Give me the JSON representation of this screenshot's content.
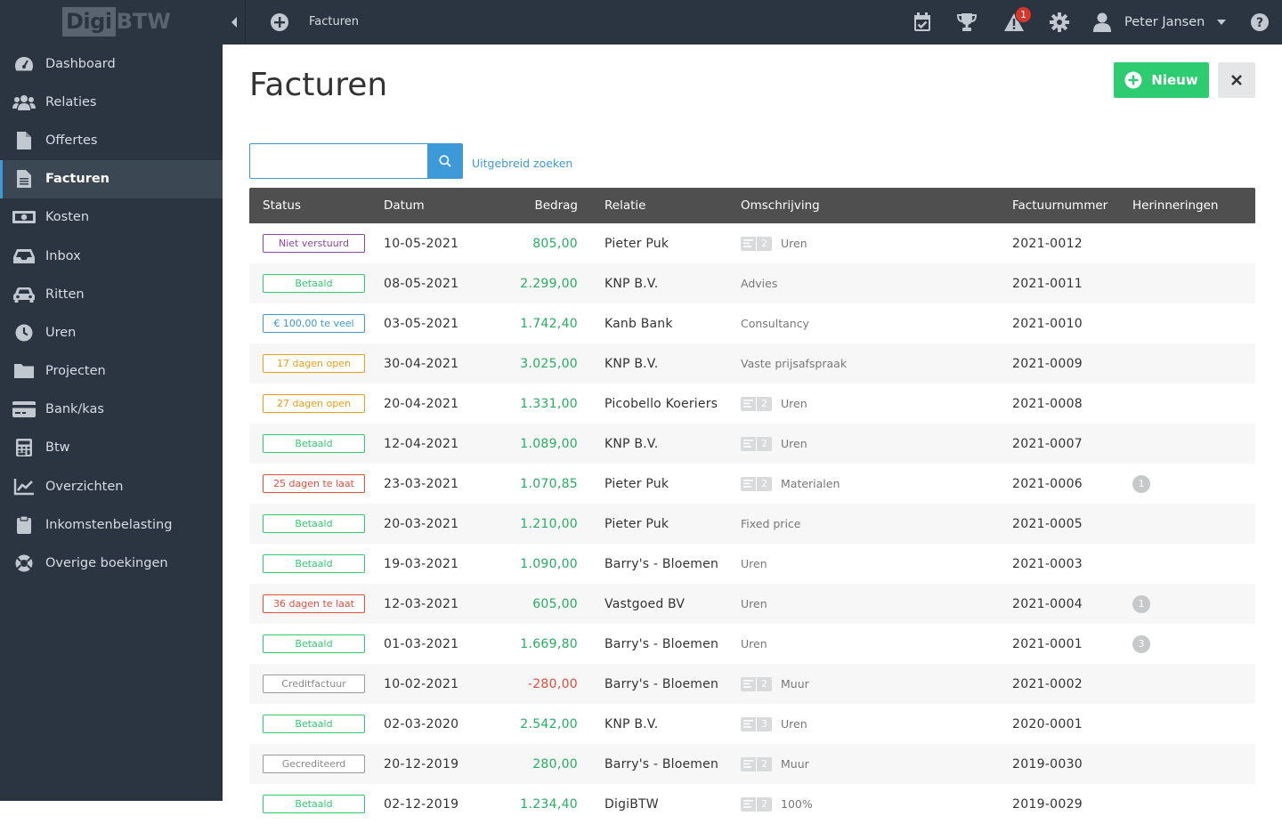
{
  "app": {
    "logo_part1": "Digi",
    "logo_part2": "BTW"
  },
  "sidebar": {
    "items": [
      {
        "label": "Dashboard",
        "icon": "dashboard-icon",
        "active": false
      },
      {
        "label": "Relaties",
        "icon": "users-icon",
        "active": false
      },
      {
        "label": "Offertes",
        "icon": "file-icon",
        "active": false
      },
      {
        "label": "Facturen",
        "icon": "file-text-icon",
        "active": true
      },
      {
        "label": "Kosten",
        "icon": "money-icon",
        "active": false
      },
      {
        "label": "Inbox",
        "icon": "inbox-icon",
        "active": false
      },
      {
        "label": "Ritten",
        "icon": "car-icon",
        "active": false
      },
      {
        "label": "Uren",
        "icon": "clock-icon",
        "active": false
      },
      {
        "label": "Projecten",
        "icon": "folder-icon",
        "active": false
      },
      {
        "label": "Bank/kas",
        "icon": "credit-card-icon",
        "active": false
      },
      {
        "label": "Btw",
        "icon": "calculator-icon",
        "active": false
      },
      {
        "label": "Overzichten",
        "icon": "chart-icon",
        "active": false
      },
      {
        "label": "Inkomstenbelasting",
        "icon": "clipboard-icon",
        "active": false
      },
      {
        "label": "Overige boekingen",
        "icon": "lifebuoy-icon",
        "active": false
      }
    ]
  },
  "topbar": {
    "title": "Facturen",
    "notification_count": "1",
    "user_name": "Peter Jansen"
  },
  "page": {
    "title": "Facturen",
    "new_button": "Nieuw",
    "search_placeholder": "",
    "search_value": "",
    "advanced_search": "Uitgebreid zoeken"
  },
  "table": {
    "headers": {
      "status": "Status",
      "datum": "Datum",
      "bedrag": "Bedrag",
      "relatie": "Relatie",
      "omschrijving": "Omschrijving",
      "factuurnummer": "Factuurnummer",
      "herinneringen": "Herinneringen"
    },
    "rows": [
      {
        "status": "Niet verstuurd",
        "status_color": "purple",
        "datum": "10-05-2021",
        "bedrag": "805,00",
        "amount_color": "green",
        "relatie": "Pieter Puk",
        "hours": "2",
        "omschrijving": "Uren",
        "factuurnummer": "2021-0012",
        "herinneringen": ""
      },
      {
        "status": "Betaald",
        "status_color": "green",
        "datum": "08-05-2021",
        "bedrag": "2.299,00",
        "amount_color": "green",
        "relatie": "KNP B.V.",
        "hours": "",
        "omschrijving": "Advies",
        "factuurnummer": "2021-0011",
        "herinneringen": ""
      },
      {
        "status": "€ 100,00 te veel",
        "status_color": "blue",
        "datum": "03-05-2021",
        "bedrag": "1.742,40",
        "amount_color": "green",
        "relatie": "Kanb Bank",
        "hours": "",
        "omschrijving": "Consultancy",
        "factuurnummer": "2021-0010",
        "herinneringen": ""
      },
      {
        "status": "17 dagen open",
        "status_color": "orange",
        "datum": "30-04-2021",
        "bedrag": "3.025,00",
        "amount_color": "green",
        "relatie": "KNP B.V.",
        "hours": "",
        "omschrijving": "Vaste prijsafspraak",
        "factuurnummer": "2021-0009",
        "herinneringen": ""
      },
      {
        "status": "27 dagen open",
        "status_color": "orange",
        "datum": "20-04-2021",
        "bedrag": "1.331,00",
        "amount_color": "green",
        "relatie": "Picobello Koeriers",
        "hours": "2",
        "omschrijving": "Uren",
        "factuurnummer": "2021-0008",
        "herinneringen": ""
      },
      {
        "status": "Betaald",
        "status_color": "green",
        "datum": "12-04-2021",
        "bedrag": "1.089,00",
        "amount_color": "green",
        "relatie": "KNP B.V.",
        "hours": "2",
        "omschrijving": "Uren",
        "factuurnummer": "2021-0007",
        "herinneringen": ""
      },
      {
        "status": "25 dagen te laat",
        "status_color": "red",
        "datum": "23-03-2021",
        "bedrag": "1.070,85",
        "amount_color": "green",
        "relatie": "Pieter Puk",
        "hours": "2",
        "omschrijving": "Materialen",
        "factuurnummer": "2021-0006",
        "herinneringen": "1"
      },
      {
        "status": "Betaald",
        "status_color": "green",
        "datum": "20-03-2021",
        "bedrag": "1.210,00",
        "amount_color": "green",
        "relatie": "Pieter Puk",
        "hours": "",
        "omschrijving": "Fixed price",
        "factuurnummer": "2021-0005",
        "herinneringen": ""
      },
      {
        "status": "Betaald",
        "status_color": "green",
        "datum": "19-03-2021",
        "bedrag": "1.090,00",
        "amount_color": "green",
        "relatie": "Barry's - Bloemen",
        "hours": "",
        "omschrijving": "Uren",
        "factuurnummer": "2021-0003",
        "herinneringen": ""
      },
      {
        "status": "36 dagen te laat",
        "status_color": "red",
        "datum": "12-03-2021",
        "bedrag": "605,00",
        "amount_color": "green",
        "relatie": "Vastgoed BV",
        "hours": "",
        "omschrijving": "Uren",
        "factuurnummer": "2021-0004",
        "herinneringen": "1"
      },
      {
        "status": "Betaald",
        "status_color": "green",
        "datum": "01-03-2021",
        "bedrag": "1.669,80",
        "amount_color": "green",
        "relatie": "Barry's - Bloemen",
        "hours": "",
        "omschrijving": "Uren",
        "factuurnummer": "2021-0001",
        "herinneringen": "3"
      },
      {
        "status": "Creditfactuur",
        "status_color": "grey",
        "datum": "10-02-2021",
        "bedrag": "-280,00",
        "amount_color": "red",
        "relatie": "Barry's - Bloemen",
        "hours": "2",
        "omschrijving": "Muur",
        "factuurnummer": "2021-0002",
        "herinneringen": ""
      },
      {
        "status": "Betaald",
        "status_color": "green",
        "datum": "02-03-2020",
        "bedrag": "2.542,00",
        "amount_color": "green",
        "relatie": "KNP B.V.",
        "hours": "3",
        "omschrijving": "Uren",
        "factuurnummer": "2020-0001",
        "herinneringen": ""
      },
      {
        "status": "Gecrediteerd",
        "status_color": "grey",
        "datum": "20-12-2019",
        "bedrag": "280,00",
        "amount_color": "green",
        "relatie": "Barry's - Bloemen",
        "hours": "2",
        "omschrijving": "Muur",
        "factuurnummer": "2019-0030",
        "herinneringen": ""
      },
      {
        "status": "Betaald",
        "status_color": "green",
        "datum": "02-12-2019",
        "bedrag": "1.234,40",
        "amount_color": "green",
        "relatie": "DigiBTW",
        "hours": "2",
        "omschrijving": "100%",
        "factuurnummer": "2019-0029",
        "herinneringen": ""
      }
    ]
  },
  "colors": {
    "sidebar_bg": "#2b3541",
    "accent_blue": "#3d99d8",
    "success_green": "#2ecc71",
    "table_header": "#4f4f4f"
  }
}
